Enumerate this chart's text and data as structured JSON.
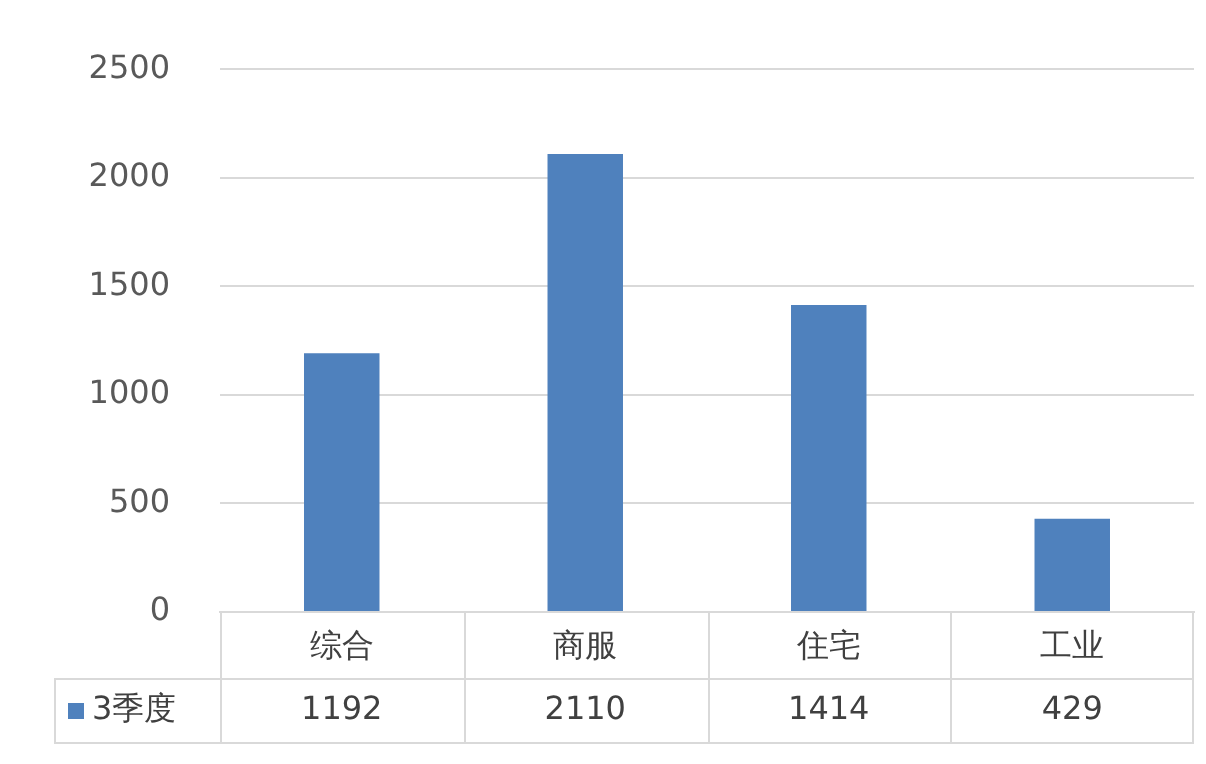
{
  "chart_data": {
    "type": "bar",
    "categories": [
      "综合",
      "商服",
      "住宅",
      "工业"
    ],
    "series": [
      {
        "name": "3季度",
        "color": "#4f81bd",
        "values": [
          1192,
          2110,
          1414,
          429
        ]
      }
    ],
    "ylim": [
      0,
      2500
    ],
    "yticks": [
      0,
      500,
      1000,
      1500,
      2000,
      2500
    ],
    "grid": "y",
    "legend": "bottom",
    "data_labels": true
  }
}
